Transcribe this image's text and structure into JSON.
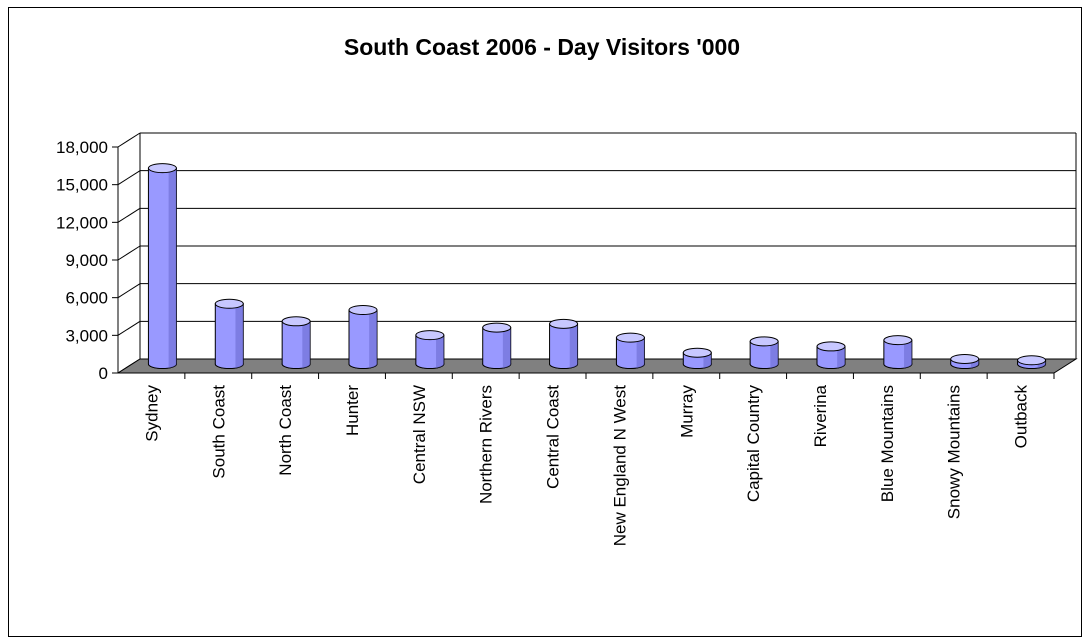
{
  "chart_data": {
    "type": "bar",
    "title": "South Coast 2006 - Day Visitors '000",
    "categories": [
      "Sydney",
      "South Coast",
      "North Coast",
      "Hunter",
      "Central NSW",
      "Northern Rivers",
      "Central Coast",
      "New England N West",
      "Murray",
      "Capital Country",
      "Riverina",
      "Blue Mountains",
      "Snowy Mountains",
      "Outback"
    ],
    "values": [
      15600,
      4800,
      3400,
      4300,
      2300,
      2900,
      3200,
      2100,
      900,
      1800,
      1400,
      1900,
      400,
      300
    ],
    "ylim": [
      0,
      18000
    ],
    "yticks": [
      "0",
      "3,000",
      "6,000",
      "9,000",
      "12,000",
      "15,000",
      "18,000"
    ],
    "xlabel": "",
    "ylabel": "",
    "grid": true,
    "legend": "none",
    "colors": {
      "bar_fill": "#9999ff",
      "bar_top": "#c8c8ff",
      "bar_shade": "#6666cc",
      "floor": "#808080",
      "grid": "#000000"
    }
  }
}
